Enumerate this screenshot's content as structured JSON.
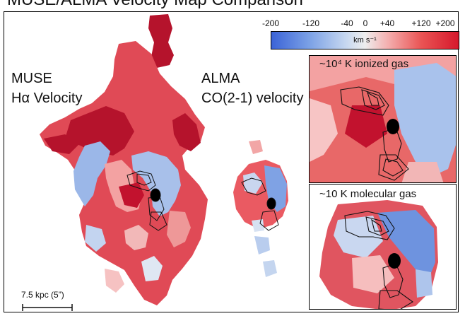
{
  "figure": {
    "title": "MUSE/ALMA Velocity Map Comparison",
    "muse_label": [
      "MUSE",
      "Hα Velocity"
    ],
    "alma_label": [
      "ALMA",
      "CO(2-1) velocity"
    ],
    "scale_bar_label": "7.5 kpc (5”)",
    "colors": {
      "neg_max": "#3b63d7",
      "neutral": "#eeeeee",
      "pos_max": "#d6182c",
      "dark_red": "#a8102a"
    }
  },
  "colorbar": {
    "tick_labels": [
      "-200",
      "-120",
      "-40",
      "0",
      "+40",
      "+120",
      "+200"
    ],
    "tick_values": [
      -200,
      -120,
      -40,
      0,
      40,
      120,
      200
    ],
    "range": [
      -200,
      200
    ],
    "unit": "km s⁻¹"
  },
  "insets": [
    {
      "label": "~10⁴ K ionized gas"
    },
    {
      "label": "~10 K molecular gas"
    }
  ]
}
